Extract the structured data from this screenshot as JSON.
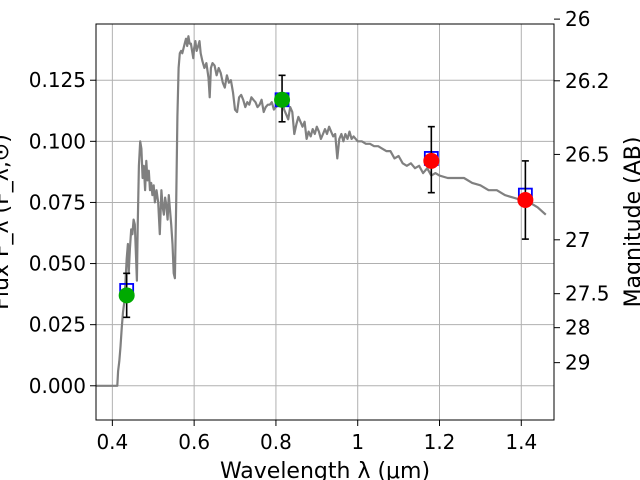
{
  "chart_data": {
    "type": "line",
    "xlabel": "Wavelength  λ (μm)",
    "ylabel": "Flux F_λ (F_λ,⊙)",
    "y2label": "Magnitude (AB)",
    "xlim": [
      0.36,
      1.48
    ],
    "ylim": [
      -0.014,
      0.148
    ],
    "grid": true,
    "x_ticks": [
      "0.4",
      "0.6",
      "0.8",
      "1",
      "1.2",
      "1.4"
    ],
    "y_ticks": [
      "0.000",
      "0.025",
      "0.050",
      "0.075",
      "0.100",
      "0.125"
    ],
    "y2_ticks": [
      {
        "label": "26",
        "mag": 26.0
      },
      {
        "label": "26.2",
        "mag": 26.2
      },
      {
        "label": "26.5",
        "mag": 26.5
      },
      {
        "label": "27",
        "mag": 27.0
      },
      {
        "label": "27.5",
        "mag": 27.5
      },
      {
        "label": "28",
        "mag": 28.0
      },
      {
        "label": "29",
        "mag": 29.0
      }
    ],
    "spectrum": {
      "color": "#808080",
      "x": [
        0.36,
        0.412,
        0.414,
        0.417,
        0.42,
        0.423,
        0.426,
        0.429,
        0.432,
        0.435,
        0.438,
        0.44,
        0.443,
        0.446,
        0.449,
        0.452,
        0.455,
        0.458,
        0.46,
        0.462,
        0.465,
        0.468,
        0.471,
        0.474,
        0.477,
        0.48,
        0.483,
        0.486,
        0.489,
        0.492,
        0.495,
        0.498,
        0.501,
        0.504,
        0.508,
        0.512,
        0.516,
        0.52,
        0.523,
        0.526,
        0.529,
        0.532,
        0.535,
        0.538,
        0.541,
        0.544,
        0.547,
        0.55,
        0.553,
        0.556,
        0.559,
        0.562,
        0.565,
        0.568,
        0.571,
        0.574,
        0.577,
        0.58,
        0.583,
        0.586,
        0.589,
        0.592,
        0.595,
        0.598,
        0.6,
        0.603,
        0.606,
        0.61,
        0.613,
        0.616,
        0.62,
        0.625,
        0.63,
        0.635,
        0.638,
        0.641,
        0.645,
        0.65,
        0.655,
        0.66,
        0.665,
        0.67,
        0.675,
        0.68,
        0.685,
        0.69,
        0.695,
        0.7,
        0.705,
        0.71,
        0.715,
        0.72,
        0.725,
        0.73,
        0.735,
        0.74,
        0.745,
        0.75,
        0.755,
        0.76,
        0.765,
        0.77,
        0.775,
        0.78,
        0.785,
        0.79,
        0.795,
        0.8,
        0.805,
        0.81,
        0.815,
        0.82,
        0.825,
        0.83,
        0.835,
        0.84,
        0.845,
        0.85,
        0.855,
        0.86,
        0.865,
        0.87,
        0.875,
        0.88,
        0.885,
        0.89,
        0.895,
        0.9,
        0.905,
        0.91,
        0.915,
        0.92,
        0.925,
        0.93,
        0.935,
        0.94,
        0.945,
        0.95,
        0.955,
        0.96,
        0.965,
        0.97,
        0.975,
        0.98,
        0.985,
        0.99,
        1.0,
        1.01,
        1.02,
        1.03,
        1.04,
        1.05,
        1.06,
        1.07,
        1.08,
        1.09,
        1.1,
        1.11,
        1.12,
        1.13,
        1.14,
        1.15,
        1.16,
        1.17,
        1.18,
        1.19,
        1.2,
        1.22,
        1.24,
        1.26,
        1.28,
        1.3,
        1.32,
        1.34,
        1.36,
        1.38,
        1.4,
        1.42,
        1.44,
        1.46
      ],
      "y": [
        0.0,
        0.0,
        0.006,
        0.01,
        0.016,
        0.024,
        0.03,
        0.034,
        0.042,
        0.052,
        0.058,
        0.046,
        0.056,
        0.064,
        0.062,
        0.068,
        0.066,
        0.052,
        0.043,
        0.065,
        0.09,
        0.1,
        0.097,
        0.085,
        0.09,
        0.08,
        0.092,
        0.084,
        0.088,
        0.08,
        0.083,
        0.078,
        0.082,
        0.075,
        0.08,
        0.075,
        0.062,
        0.08,
        0.073,
        0.07,
        0.077,
        0.074,
        0.068,
        0.078,
        0.072,
        0.066,
        0.058,
        0.046,
        0.044,
        0.075,
        0.11,
        0.13,
        0.136,
        0.137,
        0.136,
        0.138,
        0.14,
        0.142,
        0.139,
        0.143,
        0.14,
        0.14,
        0.137,
        0.134,
        0.138,
        0.141,
        0.137,
        0.139,
        0.141,
        0.136,
        0.133,
        0.13,
        0.132,
        0.126,
        0.118,
        0.13,
        0.132,
        0.131,
        0.127,
        0.13,
        0.128,
        0.124,
        0.122,
        0.127,
        0.124,
        0.125,
        0.12,
        0.113,
        0.112,
        0.118,
        0.119,
        0.117,
        0.114,
        0.116,
        0.115,
        0.118,
        0.117,
        0.116,
        0.114,
        0.115,
        0.117,
        0.112,
        0.114,
        0.115,
        0.115,
        0.116,
        0.113,
        0.114,
        0.115,
        0.118,
        0.117,
        0.113,
        0.111,
        0.109,
        0.114,
        0.112,
        0.103,
        0.107,
        0.11,
        0.108,
        0.106,
        0.108,
        0.101,
        0.104,
        0.102,
        0.105,
        0.103,
        0.106,
        0.104,
        0.101,
        0.103,
        0.105,
        0.103,
        0.106,
        0.104,
        0.102,
        0.103,
        0.093,
        0.101,
        0.103,
        0.1,
        0.103,
        0.101,
        0.104,
        0.101,
        0.102,
        0.1,
        0.1,
        0.099,
        0.099,
        0.098,
        0.098,
        0.097,
        0.096,
        0.096,
        0.093,
        0.094,
        0.091,
        0.09,
        0.091,
        0.089,
        0.09,
        0.087,
        0.089,
        0.086,
        0.087,
        0.086,
        0.085,
        0.085,
        0.085,
        0.083,
        0.082,
        0.08,
        0.08,
        0.078,
        0.077,
        0.076,
        0.075,
        0.073,
        0.07
      ]
    },
    "photometry_model": {
      "marker": "square",
      "color": "#0000ff",
      "x": [
        0.435,
        0.815,
        1.18,
        1.41
      ],
      "y": [
        0.039,
        0.117,
        0.093,
        0.078
      ]
    },
    "photometry_observed": [
      {
        "x": 0.435,
        "y": 0.037,
        "err_low": 0.009,
        "err_high": 0.009,
        "color": "#00aa00"
      },
      {
        "x": 0.815,
        "y": 0.117,
        "err_low": 0.009,
        "err_high": 0.01,
        "color": "#00aa00"
      },
      {
        "x": 1.18,
        "y": 0.092,
        "err_low": 0.013,
        "err_high": 0.014,
        "color": "#ff0000"
      },
      {
        "x": 1.41,
        "y": 0.076,
        "err_low": 0.016,
        "err_high": 0.016,
        "color": "#ff0000"
      }
    ]
  }
}
